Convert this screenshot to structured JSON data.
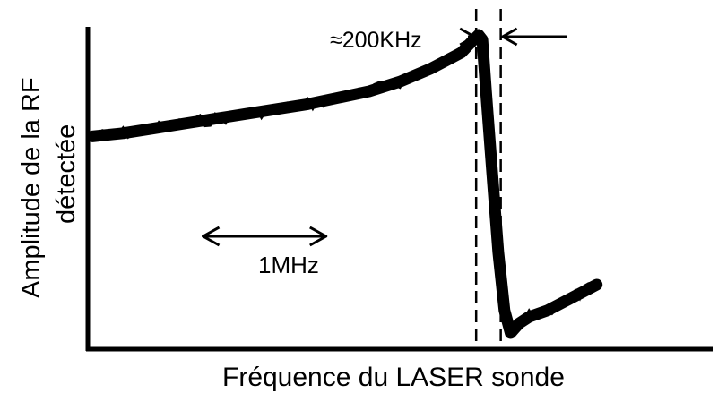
{
  "chart_data": {
    "type": "line",
    "xlabel": "Fréquence du LASER sonde",
    "ylabel_line1": "Amplitude de la RF",
    "ylabel_line2": "détectée",
    "x_unit": "MHz",
    "xlim": [
      0,
      4.35
    ],
    "ylim": [
      0,
      1
    ],
    "grid": false,
    "series": [
      {
        "x": [
          0,
          0.25,
          0.5,
          0.75,
          1.0,
          1.25,
          1.5,
          1.75,
          2.0,
          2.25,
          2.5,
          2.75,
          3.0,
          3.1,
          3.14,
          3.17,
          3.2,
          3.25,
          3.3,
          3.35,
          3.4,
          3.47,
          3.55,
          3.7,
          3.85,
          4.0,
          4.1
        ],
        "y": [
          0.66,
          0.67,
          0.685,
          0.7,
          0.715,
          0.73,
          0.745,
          0.76,
          0.78,
          0.8,
          0.83,
          0.87,
          0.92,
          0.96,
          0.975,
          0.96,
          0.8,
          0.55,
          0.3,
          0.12,
          0.05,
          0.08,
          0.1,
          0.12,
          0.15,
          0.18,
          0.2
        ]
      }
    ],
    "annotations": {
      "scale_label": "1MHz",
      "scale_from": 0.9,
      "scale_to": 1.9,
      "resolution_label": "≈200KHz",
      "dashed_left": 3.12,
      "dashed_right": 3.32
    }
  }
}
